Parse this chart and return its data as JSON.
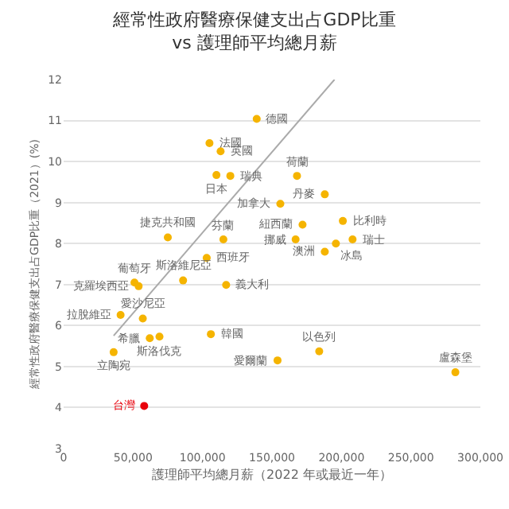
{
  "chart_data": {
    "type": "scatter",
    "title": "經常性政府醫療保健支出占GDP比重\nvs 護理師平均總月薪",
    "xlabel": "護理師平均總月薪（2022 年或最近一年）",
    "ylabel": "經常性政府醫療保健支出占GDP比重（2021）(%)",
    "xlim": [
      0,
      300000
    ],
    "xticks": [
      0,
      {
        "value": 50000,
        "label": "50,000"
      },
      {
        "value": 100000,
        "label": "100,000"
      },
      {
        "value": 150000,
        "label": "150,000"
      },
      {
        "value": 200000,
        "label": "200,000"
      },
      {
        "value": 250000,
        "label": "250,000"
      },
      {
        "value": 300000,
        "label": "300,000"
      }
    ],
    "ylim": [
      3,
      12
    ],
    "yticks": [
      3,
      4,
      5,
      6,
      7,
      8,
      9,
      10,
      11,
      12
    ],
    "grid": "y",
    "marker": "circle",
    "series": [
      {
        "type": "scatter",
        "color": "#f5b400",
        "x": [
          139000,
          105000,
          113000,
          110000,
          120000,
          168000,
          156000,
          188000,
          201000,
          167000,
          172000,
          208000,
          196000,
          188000,
          75000,
          115000,
          103000,
          117000,
          86000,
          51000,
          54000,
          41000,
          57000,
          62000,
          69000,
          36000,
          106000,
          154000,
          184000,
          282000
        ],
        "values": [
          11.04,
          10.45,
          10.25,
          9.67,
          9.65,
          9.65,
          8.97,
          9.2,
          8.55,
          8.1,
          8.46,
          8.1,
          8.0,
          7.8,
          8.15,
          8.1,
          7.65,
          6.99,
          7.1,
          7.05,
          6.96,
          6.26,
          6.17,
          5.69,
          5.73,
          5.35,
          5.79,
          5.15,
          5.37,
          4.86
        ]
      },
      {
        "type": "scatter",
        "color": "#e8000b",
        "x": [
          58000
        ],
        "values": [
          4.04
        ]
      },
      {
        "type": "line",
        "marker": "none",
        "color": "#aaaaaa",
        "x": [
          36000,
          195000
        ],
        "values": [
          5.75,
          12
        ]
      }
    ],
    "annotations": [
      {
        "text": "德國",
        "x": 139000,
        "y": 11.04
      },
      {
        "text": "法國",
        "x": 105000,
        "y": 10.45
      },
      {
        "text": "英國",
        "x": 113000,
        "y": 10.25
      },
      {
        "text": "日本",
        "x": 110000,
        "y": 9.67
      },
      {
        "text": "瑞典",
        "x": 120000,
        "y": 9.65
      },
      {
        "text": "荷蘭",
        "x": 168000,
        "y": 9.65
      },
      {
        "text": "加拿大",
        "x": 156000,
        "y": 8.97
      },
      {
        "text": "丹麥",
        "x": 188000,
        "y": 9.2
      },
      {
        "text": "比利時",
        "x": 201000,
        "y": 8.55
      },
      {
        "text": "挪威",
        "x": 167000,
        "y": 8.1
      },
      {
        "text": "紐西蘭",
        "x": 172000,
        "y": 8.46
      },
      {
        "text": "瑞士",
        "x": 208000,
        "y": 8.1
      },
      {
        "text": "冰島",
        "x": 196000,
        "y": 8.0
      },
      {
        "text": "澳洲",
        "x": 188000,
        "y": 7.8
      },
      {
        "text": "捷克共和國",
        "x": 75000,
        "y": 8.15
      },
      {
        "text": "芬蘭",
        "x": 115000,
        "y": 8.1
      },
      {
        "text": "西班牙",
        "x": 103000,
        "y": 7.65
      },
      {
        "text": "義大利",
        "x": 117000,
        "y": 6.99
      },
      {
        "text": "斯洛維尼亞",
        "x": 86000,
        "y": 7.1
      },
      {
        "text": "葡萄牙",
        "x": 51000,
        "y": 7.05
      },
      {
        "text": "克羅埃西亞",
        "x": 54000,
        "y": 6.96
      },
      {
        "text": "拉脫維亞",
        "x": 41000,
        "y": 6.26
      },
      {
        "text": "愛沙尼亞",
        "x": 57000,
        "y": 6.17
      },
      {
        "text": "希臘",
        "x": 62000,
        "y": 5.69
      },
      {
        "text": "斯洛伐克",
        "x": 69000,
        "y": 5.73
      },
      {
        "text": "立陶宛",
        "x": 36000,
        "y": 5.35
      },
      {
        "text": "韓國",
        "x": 106000,
        "y": 5.79
      },
      {
        "text": "台灣",
        "x": 58000,
        "y": 4.04
      },
      {
        "text": "愛爾蘭",
        "x": 154000,
        "y": 5.15
      },
      {
        "text": "以色列",
        "x": 184000,
        "y": 5.37
      },
      {
        "text": "盧森堡",
        "x": 282000,
        "y": 4.86
      }
    ]
  }
}
